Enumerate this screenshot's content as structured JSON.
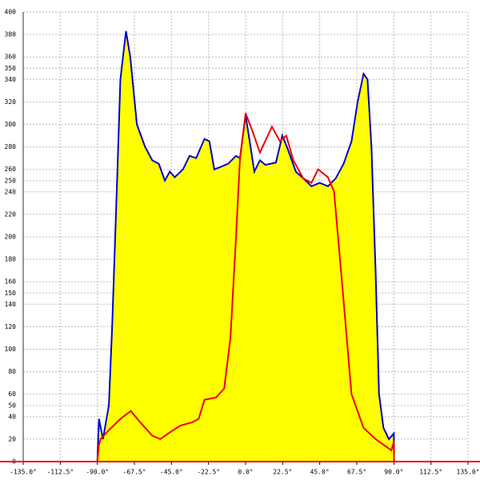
{
  "chart_data": {
    "type": "area",
    "xlim": [
      -135,
      135
    ],
    "ylim": [
      0,
      400
    ],
    "xticks": [
      {
        "value": -135,
        "label": "-135.0°"
      },
      {
        "value": -112.5,
        "label": "-112.5°"
      },
      {
        "value": -90,
        "label": "-90.0°"
      },
      {
        "value": -67.5,
        "label": "-67.5°"
      },
      {
        "value": -45,
        "label": "-45.0°"
      },
      {
        "value": -22.5,
        "label": "-22.5°"
      },
      {
        "value": 0,
        "label": "0.0°"
      },
      {
        "value": 22.5,
        "label": "22.5°"
      },
      {
        "value": 45,
        "label": "45.0°"
      },
      {
        "value": 67.5,
        "label": "67.5°"
      },
      {
        "value": 90,
        "label": "90.0°"
      },
      {
        "value": 112.5,
        "label": "112.5°"
      },
      {
        "value": 135,
        "label": "135.0°"
      }
    ],
    "yticks": [
      0,
      20,
      40,
      50,
      60,
      80,
      100,
      120,
      140,
      150,
      160,
      180,
      200,
      220,
      240,
      250,
      260,
      280,
      300,
      320,
      340,
      350,
      360,
      380,
      400
    ],
    "grid": true,
    "series": [
      {
        "color": "#0000cc",
        "fill": "#ffff00",
        "x": [
          -90,
          -89,
          -86.6,
          -83,
          -81,
          -78,
          -76,
          -72.6,
          -70,
          -66,
          -61,
          -56.6,
          -52.7,
          -49,
          -46,
          -43,
          -38,
          -34,
          -30,
          -25,
          -22,
          -19,
          -15.5,
          -10.6,
          -5.8,
          -3.4,
          0,
          3,
          5.3,
          8.7,
          12,
          18.4,
          22.3,
          25.6,
          30.5,
          35,
          40,
          45,
          50,
          54.7,
          59.5,
          64.3,
          68,
          71.6,
          74,
          76.4,
          78.9,
          81,
          83.7,
          87,
          90,
          90.1
        ],
        "values": [
          0,
          38,
          20,
          50,
          120,
          250,
          340,
          383,
          360,
          300,
          280,
          268,
          265,
          250,
          258,
          253,
          260,
          272,
          270,
          287,
          285,
          260,
          262,
          265,
          272,
          270,
          308,
          280,
          258,
          268,
          264,
          266,
          290,
          278,
          258,
          252,
          245,
          248,
          245,
          252,
          265,
          285,
          320,
          345,
          340,
          280,
          170,
          60,
          30,
          20,
          25,
          0
        ]
      },
      {
        "color": "#ee0000",
        "x": [
          -90,
          -89,
          -88,
          -83,
          -76,
          -69.7,
          -64,
          -56.6,
          -51.8,
          -47,
          -39.7,
          -32.4,
          -28.5,
          -25,
          -18,
          -13,
          -9.2,
          -5.8,
          -3.4,
          0,
          3.9,
          8.7,
          16,
          20.8,
          24.7,
          29,
          35,
          40,
          44,
          50,
          53.7,
          58.5,
          64.3,
          71.6,
          78.9,
          88.5,
          90,
          90.1
        ],
        "values": [
          0,
          15,
          20,
          28,
          38,
          45,
          35,
          23,
          20,
          25,
          32,
          35,
          38,
          55,
          57,
          65,
          110,
          200,
          270,
          310,
          295,
          275,
          298,
          285,
          290,
          268,
          252,
          248,
          260,
          253,
          240,
          160,
          60,
          30,
          20,
          10,
          18,
          0
        ]
      }
    ]
  }
}
